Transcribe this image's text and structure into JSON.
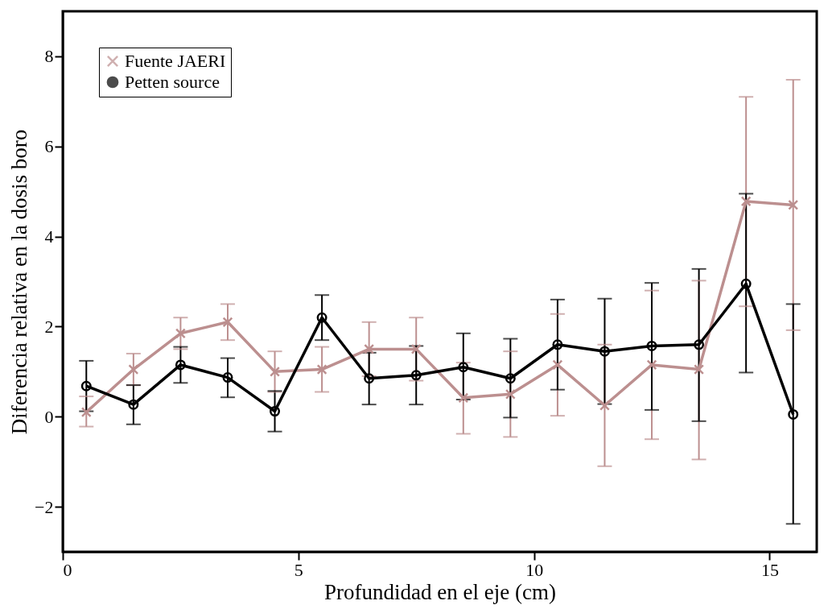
{
  "chart_data": {
    "type": "line",
    "xlabel": "Profundidad en el eje (cm)",
    "ylabel": "Diferencia relativa en la dosis boro",
    "x": [
      0.5,
      1.5,
      2.5,
      3.5,
      4.5,
      5.5,
      6.5,
      7.5,
      8.5,
      9.5,
      10.5,
      11.5,
      12.5,
      13.5,
      14.5,
      15.5
    ],
    "series": [
      {
        "name": "Fuente JAERI",
        "color": "#bc8f8f",
        "marker": "cross",
        "values": [
          0.1,
          1.05,
          1.85,
          2.1,
          1.0,
          1.05,
          1.5,
          1.5,
          0.42,
          0.5,
          1.15,
          0.25,
          1.15,
          1.05,
          4.78,
          4.7
        ],
        "errors": [
          [
            -0.22,
            0.45
          ],
          [
            0.7,
            1.4
          ],
          [
            1.5,
            2.2
          ],
          [
            1.7,
            2.5
          ],
          [
            0.55,
            1.45
          ],
          [
            0.55,
            1.55
          ],
          [
            0.9,
            2.1
          ],
          [
            0.8,
            2.2
          ],
          [
            -0.38,
            1.2
          ],
          [
            -0.45,
            1.45
          ],
          [
            0.02,
            2.28
          ],
          [
            -1.1,
            1.6
          ],
          [
            -0.5,
            2.8
          ],
          [
            -0.95,
            3.02
          ],
          [
            2.45,
            7.1
          ],
          [
            1.92,
            7.48
          ]
        ]
      },
      {
        "name": "Petten source",
        "color": "#000000",
        "marker": "circle",
        "values": [
          0.68,
          0.27,
          1.15,
          0.87,
          0.12,
          2.2,
          0.85,
          0.92,
          1.1,
          0.85,
          1.6,
          1.45,
          1.57,
          1.6,
          2.95,
          0.05
        ],
        "errors": [
          [
            0.12,
            1.24
          ],
          [
            -0.17,
            0.7
          ],
          [
            0.75,
            1.55
          ],
          [
            0.43,
            1.3
          ],
          [
            -0.33,
            0.57
          ],
          [
            1.7,
            2.7
          ],
          [
            0.27,
            1.42
          ],
          [
            0.27,
            1.57
          ],
          [
            0.38,
            1.85
          ],
          [
            -0.02,
            1.73
          ],
          [
            0.6,
            2.6
          ],
          [
            0.28,
            2.62
          ],
          [
            0.15,
            2.97
          ],
          [
            -0.1,
            3.28
          ],
          [
            0.98,
            4.95
          ],
          [
            -2.38,
            2.5
          ]
        ]
      }
    ],
    "xlim": [
      0,
      16
    ],
    "xticks": [
      0,
      5,
      10,
      15
    ],
    "ylim": [
      -3,
      9
    ],
    "yticks": [
      -2,
      0,
      2,
      4,
      6,
      8
    ],
    "grid": false,
    "legend": "top left",
    "line_style": "solid"
  }
}
